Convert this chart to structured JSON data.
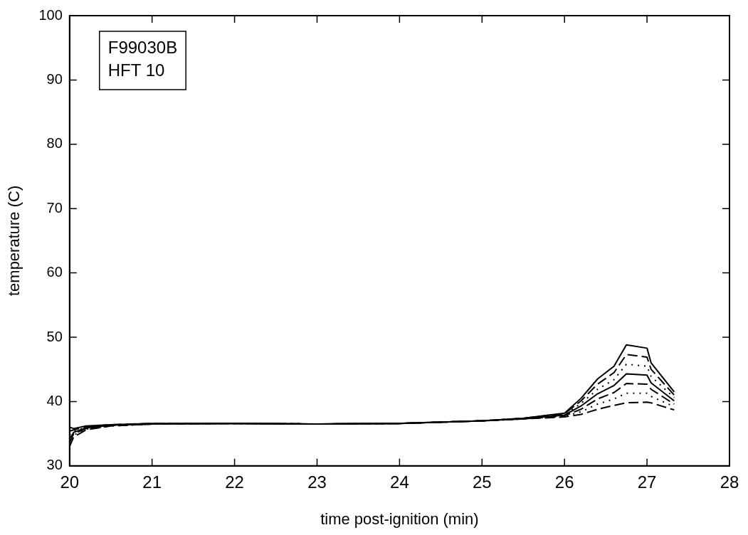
{
  "chart_data": {
    "type": "line",
    "xlabel": "time post-ignition (min)",
    "ylabel": "temperature (C)",
    "annotations": [
      "F99030B\nHFT 10"
    ],
    "x": [
      20,
      20.05,
      20.2,
      20.5,
      21,
      22,
      23,
      24,
      25,
      25.5,
      26,
      26.2,
      26.4,
      26.6,
      26.75,
      27,
      27.05,
      27.33
    ],
    "xlim": [
      20,
      28
    ],
    "xticks": [
      20,
      21,
      22,
      23,
      24,
      25,
      26,
      27,
      28
    ],
    "ylim": [
      30,
      100
    ],
    "yticks": [
      30,
      40,
      50,
      60,
      70,
      80,
      90,
      100
    ],
    "grid": false,
    "legend": false,
    "marker": "none",
    "series": [
      {
        "color": "#000000",
        "line_style": "solid",
        "values": [
          36,
          35.8,
          36.2,
          36.4,
          36.6,
          36.6,
          36.5,
          36.6,
          37,
          37.4,
          38.2,
          40.5,
          43.5,
          45.5,
          48.8,
          48.3,
          46,
          41.5
        ]
      },
      {
        "color": "#000000",
        "line_style": "dashed",
        "values": [
          35.4,
          35.6,
          36.1,
          36.4,
          36.6,
          36.6,
          36.5,
          36.6,
          37,
          37.4,
          38.1,
          40.1,
          42.7,
          44.5,
          47.3,
          46.9,
          45,
          41
        ]
      },
      {
        "color": "#000000",
        "line_style": "dotted",
        "values": [
          34.8,
          35.4,
          36,
          36.3,
          36.5,
          36.6,
          36.5,
          36.6,
          37,
          37.4,
          38,
          39.7,
          41.9,
          43.4,
          45.8,
          45.5,
          43.9,
          40.6
        ]
      },
      {
        "color": "#000000",
        "line_style": "solid",
        "values": [
          34.2,
          35.2,
          35.9,
          36.3,
          36.5,
          36.6,
          36.5,
          36.6,
          37,
          37.3,
          37.9,
          39.3,
          41.2,
          42.5,
          44.3,
          44.1,
          42.9,
          40.1
        ]
      },
      {
        "color": "#000000",
        "line_style": "dashed",
        "values": [
          33.6,
          35,
          35.8,
          36.3,
          36.5,
          36.6,
          36.5,
          36.6,
          37,
          37.3,
          37.8,
          38.8,
          40.4,
          41.4,
          42.8,
          42.7,
          41.9,
          39.6
        ]
      },
      {
        "color": "#000000",
        "line_style": "dotted",
        "values": [
          33.2,
          34.8,
          35.7,
          36.2,
          36.5,
          36.6,
          36.5,
          36.6,
          37,
          37.3,
          37.7,
          38.4,
          39.6,
          40.4,
          41.3,
          41.3,
          40.8,
          39.2
        ]
      },
      {
        "color": "#000000",
        "line_style": "dashed",
        "values": [
          33,
          34.5,
          35.6,
          36.2,
          36.5,
          36.6,
          36.5,
          36.6,
          37,
          37.3,
          37.6,
          38,
          38.8,
          39.4,
          39.8,
          39.9,
          39.8,
          38.7
        ]
      }
    ]
  }
}
